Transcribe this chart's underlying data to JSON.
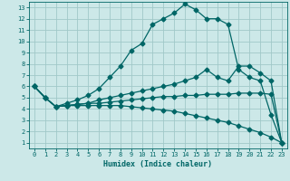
{
  "xlabel": "Humidex (Indice chaleur)",
  "bg_color": "#cce8e8",
  "grid_color": "#a0c8c8",
  "line_color": "#006666",
  "xlim": [
    -0.5,
    23.5
  ],
  "ylim": [
    0.5,
    13.5
  ],
  "xticks": [
    0,
    1,
    2,
    3,
    4,
    5,
    6,
    7,
    8,
    9,
    10,
    11,
    12,
    13,
    14,
    15,
    16,
    17,
    18,
    19,
    20,
    21,
    22,
    23
  ],
  "yticks": [
    1,
    2,
    3,
    4,
    5,
    6,
    7,
    8,
    9,
    10,
    11,
    12,
    13
  ],
  "line1_x": [
    0,
    1,
    2,
    3,
    4,
    5,
    6,
    7,
    8,
    9,
    10,
    11,
    12,
    13,
    14,
    15,
    16,
    17,
    18,
    19,
    20,
    21,
    22,
    23
  ],
  "line1_y": [
    6.0,
    5.0,
    4.2,
    4.5,
    4.8,
    5.2,
    5.8,
    6.8,
    7.8,
    9.2,
    9.8,
    11.5,
    12.0,
    12.5,
    13.3,
    12.8,
    12.0,
    12.0,
    11.5,
    7.5,
    6.8,
    6.5,
    3.5,
    1.0
  ],
  "line2_x": [
    0,
    1,
    2,
    3,
    4,
    5,
    6,
    7,
    8,
    9,
    10,
    11,
    12,
    13,
    14,
    15,
    16,
    17,
    18,
    19,
    20,
    21,
    22,
    23
  ],
  "line2_y": [
    6.0,
    5.0,
    4.2,
    4.3,
    4.4,
    4.5,
    4.8,
    5.0,
    5.2,
    5.4,
    5.6,
    5.8,
    6.0,
    6.2,
    6.5,
    6.8,
    7.5,
    6.8,
    6.5,
    7.8,
    7.8,
    7.2,
    6.5,
    1.0
  ],
  "line3_x": [
    0,
    1,
    2,
    3,
    4,
    5,
    6,
    7,
    8,
    9,
    10,
    11,
    12,
    13,
    14,
    15,
    16,
    17,
    18,
    19,
    20,
    21,
    22,
    23
  ],
  "line3_y": [
    6.0,
    5.0,
    4.2,
    4.3,
    4.4,
    4.5,
    4.5,
    4.6,
    4.7,
    4.8,
    4.9,
    5.0,
    5.1,
    5.1,
    5.2,
    5.2,
    5.3,
    5.3,
    5.3,
    5.4,
    5.4,
    5.4,
    5.3,
    1.0
  ],
  "line4_x": [
    0,
    1,
    2,
    3,
    4,
    5,
    6,
    7,
    8,
    9,
    10,
    11,
    12,
    13,
    14,
    15,
    16,
    17,
    18,
    19,
    20,
    21,
    22,
    23
  ],
  "line4_y": [
    6.0,
    5.0,
    4.2,
    4.3,
    4.3,
    4.3,
    4.3,
    4.3,
    4.3,
    4.2,
    4.1,
    4.0,
    3.9,
    3.8,
    3.6,
    3.4,
    3.2,
    3.0,
    2.8,
    2.5,
    2.2,
    1.9,
    1.5,
    1.0
  ]
}
